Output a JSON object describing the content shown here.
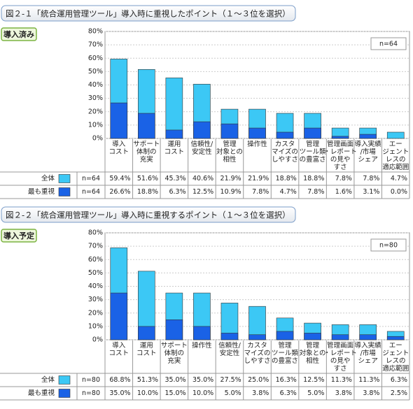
{
  "chart_data": [
    {
      "type": "bar",
      "title": "図２-１「統合運用管理ツール」導入時に重視したポイント（１～３位を選択）",
      "badge": "導入済み",
      "n_label": "n=64",
      "categories": [
        "導入\nコスト",
        "サポート\n体制の\n充実",
        "運用\nコスト",
        "信頼性/\n安定性",
        "管理\n対象との\n相性",
        "操作性",
        "カスタ\nマイズの\nしやすさ",
        "管理\nツール類\nの豊富さ",
        "管理画面\n・レポート\nの見や\nすさ",
        "導入実績\n/市場\nシェア",
        "エー\nジェント\nレスの\n適応範囲"
      ],
      "series": [
        {
          "name": "全体",
          "color": "#3cc8f5",
          "values": [
            59.4,
            51.6,
            45.3,
            40.6,
            21.9,
            21.9,
            18.8,
            18.8,
            7.8,
            7.8,
            4.7
          ],
          "value_labels": [
            "59.4%",
            "51.6%",
            "45.3%",
            "40.6%",
            "21.9%",
            "21.9%",
            "18.8%",
            "18.8%",
            "7.8%",
            "7.8%",
            "4.7%"
          ]
        },
        {
          "name": "最も重視",
          "color": "#1a62e6",
          "values": [
            26.6,
            18.8,
            6.3,
            12.5,
            10.9,
            7.8,
            4.7,
            7.8,
            1.6,
            3.1,
            0.0
          ],
          "value_labels": [
            "26.6%",
            "18.8%",
            "6.3%",
            "12.5%",
            "10.9%",
            "7.8%",
            "4.7%",
            "7.8%",
            "1.6%",
            "3.1%",
            "0.0%"
          ]
        }
      ],
      "ylim": [
        0,
        80
      ],
      "yticks": [
        {
          "value": 0,
          "label": "0%"
        },
        {
          "value": 10,
          "label": "10%"
        },
        {
          "value": 20,
          "label": "20%"
        },
        {
          "value": 30,
          "label": "30%"
        },
        {
          "value": 40,
          "label": "40%"
        },
        {
          "value": 50,
          "label": "50%"
        },
        {
          "value": 60,
          "label": "60%"
        },
        {
          "value": 70,
          "label": "70%"
        },
        {
          "value": 80,
          "label": "80%"
        }
      ],
      "grid": true
    },
    {
      "type": "bar",
      "title": "図２-２「統合運用管理ツール」導入時に重視するポイント（１～３位を選択）",
      "badge": "導入予定",
      "n_label": "n=80",
      "categories": [
        "導入\nコスト",
        "運用\nコスト",
        "サポート\n体制の\n充実",
        "操作性",
        "信頼性/\n安定性",
        "カスタ\nマイズの\nしやすさ",
        "管理\nツール類\nの豊富さ",
        "管理\n対象との\n相性",
        "管理画面\n・レポート\nの見や\nすさ",
        "導入実績\n/市場\nシェア",
        "エー\nジェント\nレスの\n適応範囲"
      ],
      "series": [
        {
          "name": "全体",
          "color": "#3cc8f5",
          "values": [
            68.8,
            51.3,
            35.0,
            35.0,
            27.5,
            25.0,
            16.3,
            12.5,
            11.3,
            11.3,
            6.3
          ],
          "value_labels": [
            "68.8%",
            "51.3%",
            "35.0%",
            "35.0%",
            "27.5%",
            "25.0%",
            "16.3%",
            "12.5%",
            "11.3%",
            "11.3%",
            "6.3%"
          ]
        },
        {
          "name": "最も重視",
          "color": "#1a62e6",
          "values": [
            35.0,
            10.0,
            15.0,
            10.0,
            5.0,
            3.8,
            6.3,
            5.0,
            3.8,
            3.8,
            2.5
          ],
          "value_labels": [
            "35.0%",
            "10.0%",
            "15.0%",
            "10.0%",
            "5.0%",
            "3.8%",
            "6.3%",
            "5.0%",
            "3.8%",
            "3.8%",
            "2.5%"
          ]
        }
      ],
      "ylim": [
        0,
        80
      ],
      "yticks": [
        {
          "value": 0,
          "label": "0%"
        },
        {
          "value": 10,
          "label": "10%"
        },
        {
          "value": 20,
          "label": "20%"
        },
        {
          "value": 30,
          "label": "30%"
        },
        {
          "value": 40,
          "label": "40%"
        },
        {
          "value": 50,
          "label": "50%"
        },
        {
          "value": 60,
          "label": "60%"
        },
        {
          "value": 70,
          "label": "70%"
        },
        {
          "value": 80,
          "label": "80%"
        }
      ],
      "grid": true
    }
  ]
}
